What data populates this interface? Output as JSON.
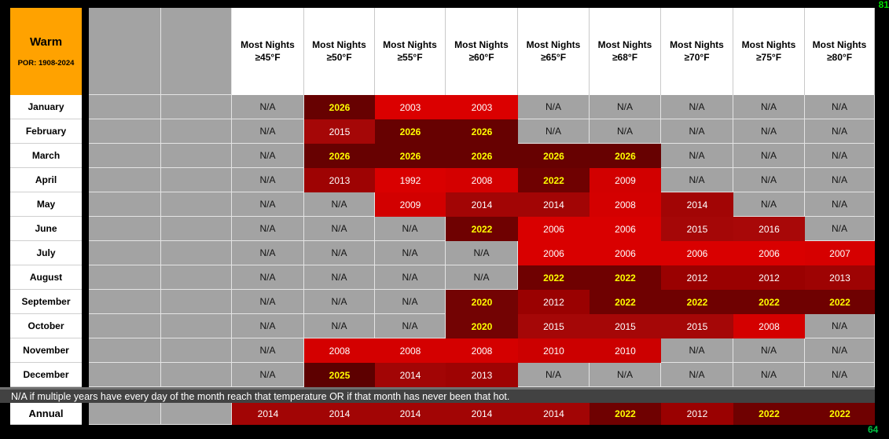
{
  "title_cell": {
    "label": "Warm",
    "por": "POR: 1908-2024"
  },
  "columns": [
    {
      "line1": "Most Nights",
      "line2": "≥45°F"
    },
    {
      "line1": "Most Nights",
      "line2": "≥50°F"
    },
    {
      "line1": "Most Nights",
      "line2": "≥55°F"
    },
    {
      "line1": "Most Nights",
      "line2": "≥60°F"
    },
    {
      "line1": "Most Nights",
      "line2": "≥65°F"
    },
    {
      "line1": "Most Nights",
      "line2": "≥68°F"
    },
    {
      "line1": "Most Nights",
      "line2": "≥70°F"
    },
    {
      "line1": "Most Nights",
      "line2": "≥75°F"
    },
    {
      "line1": "Most Nights",
      "line2": "≥80°F"
    }
  ],
  "rows": [
    {
      "label": "January",
      "cells": [
        "N/A",
        "2026",
        "2003",
        "2003",
        "N/A",
        "N/A",
        "N/A",
        "N/A",
        "N/A"
      ]
    },
    {
      "label": "February",
      "cells": [
        "N/A",
        "2015",
        "2026",
        "2026",
        "N/A",
        "N/A",
        "N/A",
        "N/A",
        "N/A"
      ]
    },
    {
      "label": "March",
      "cells": [
        "N/A",
        "2026",
        "2026",
        "2026",
        "2026",
        "2026",
        "N/A",
        "N/A",
        "N/A"
      ]
    },
    {
      "label": "April",
      "cells": [
        "N/A",
        "2013",
        "1992",
        "2008",
        "2022",
        "2009",
        "N/A",
        "N/A",
        "N/A"
      ]
    },
    {
      "label": "May",
      "cells": [
        "N/A",
        "N/A",
        "2009",
        "2014",
        "2014",
        "2008",
        "2014",
        "N/A",
        "N/A"
      ]
    },
    {
      "label": "June",
      "cells": [
        "N/A",
        "N/A",
        "N/A",
        "2022",
        "2006",
        "2006",
        "2015",
        "2016",
        "N/A"
      ]
    },
    {
      "label": "July",
      "cells": [
        "N/A",
        "N/A",
        "N/A",
        "N/A",
        "2006",
        "2006",
        "2006",
        "2006",
        "2007"
      ]
    },
    {
      "label": "August",
      "cells": [
        "N/A",
        "N/A",
        "N/A",
        "N/A",
        "2022",
        "2022",
        "2012",
        "2012",
        "2013"
      ]
    },
    {
      "label": "September",
      "cells": [
        "N/A",
        "N/A",
        "N/A",
        "2020",
        "2012",
        "2022",
        "2022",
        "2022",
        "2022"
      ]
    },
    {
      "label": "October",
      "cells": [
        "N/A",
        "N/A",
        "N/A",
        "2020",
        "2015",
        "2015",
        "2015",
        "2008",
        "N/A"
      ]
    },
    {
      "label": "November",
      "cells": [
        "N/A",
        "2008",
        "2008",
        "2008",
        "2010",
        "2010",
        "N/A",
        "N/A",
        "N/A"
      ]
    },
    {
      "label": "December",
      "cells": [
        "N/A",
        "2025",
        "2014",
        "2013",
        "N/A",
        "N/A",
        "N/A",
        "N/A",
        "N/A"
      ]
    }
  ],
  "annual_row": {
    "label": "Annual",
    "cells": [
      "2014",
      "2014",
      "2014",
      "2014",
      "2014",
      "2022",
      "2012",
      "2022",
      "2022"
    ]
  },
  "note": "N/A if multiple years have every day of the month reach that temperature OR if that month has never been that hot.",
  "selection": {
    "row": "October",
    "column_header": "Most Nights ≥70°F",
    "value": "2015",
    "row_index": 9,
    "cell_index": 6
  },
  "corner_values": {
    "top_right": "81",
    "bottom_right": "64"
  },
  "styles": {
    "page_bg": "#000000",
    "accent_orange": "#ffa200",
    "filler_gray": "#a3a3a3",
    "note_bar_bg": "#424242",
    "selection_blue": "#3f68dd",
    "green_top_right": "#00dc00",
    "green_bottom_right": "#00c544",
    "year_colors": {
      "N/A": {
        "bg": "#a3a3a3",
        "fg": "#141414",
        "bold": false
      },
      "1992": {
        "bg": "#d90000",
        "fg": "#ffffff",
        "bold": false
      },
      "2003": {
        "bg": "#db0000",
        "fg": "#ffffff",
        "bold": false
      },
      "2006": {
        "bg": "#d90000",
        "fg": "#ffffff",
        "bold": false
      },
      "2007": {
        "bg": "#d60000",
        "fg": "#ffffff",
        "bold": false
      },
      "2008": {
        "bg": "#d40000",
        "fg": "#ffffff",
        "bold": false
      },
      "2009": {
        "bg": "#d20000",
        "fg": "#ffffff",
        "bold": false
      },
      "2010": {
        "bg": "#cc0000",
        "fg": "#ffffff",
        "bold": false
      },
      "2012": {
        "bg": "#9a0101",
        "fg": "#ffffff",
        "bold": false
      },
      "2013": {
        "bg": "#9e0303",
        "fg": "#ffffff",
        "bold": false
      },
      "2014": {
        "bg": "#a20505",
        "fg": "#ffffff",
        "bold": false
      },
      "2015": {
        "bg": "#a50707",
        "fg": "#ffffff",
        "bold": false
      },
      "2016": {
        "bg": "#a80808",
        "fg": "#ffffff",
        "bold": false
      },
      "2020": {
        "bg": "#730303",
        "fg": "#ffff00",
        "bold": true
      },
      "2022": {
        "bg": "#6f0101",
        "fg": "#ffff00",
        "bold": true
      },
      "2025": {
        "bg": "#5d0000",
        "fg": "#ffff00",
        "bold": true
      },
      "2026": {
        "bg": "#670101",
        "fg": "#ffff00",
        "bold": true
      }
    }
  }
}
